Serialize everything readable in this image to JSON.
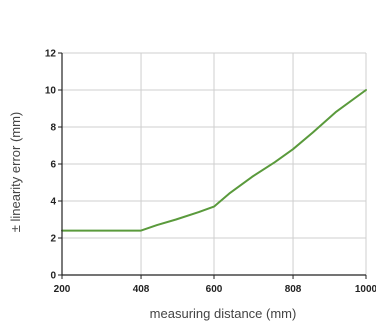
{
  "chart_data": {
    "type": "line",
    "title": "",
    "xlabel": "measuring distance (mm)",
    "ylabel": "± linearity error (mm)",
    "xlim": [
      200,
      1000
    ],
    "ylim": [
      0,
      12
    ],
    "x_ticks": [
      200,
      408,
      600,
      808,
      1000
    ],
    "y_ticks": [
      0,
      2,
      4,
      6,
      8,
      10,
      12
    ],
    "grid": true,
    "legend": "none",
    "series": [
      {
        "color": "#5a9a3c",
        "x": [
          200,
          408,
          450,
          500,
          560,
          600,
          640,
          700,
          760,
          808,
          860,
          920,
          1000
        ],
        "y": [
          2.4,
          2.4,
          2.7,
          3.0,
          3.4,
          3.7,
          4.4,
          5.3,
          6.1,
          6.8,
          7.7,
          8.8,
          10.0
        ]
      }
    ],
    "colors": {
      "line": "#5a9a3c",
      "grid": "#cfcfcf",
      "axis": "#222222"
    }
  }
}
